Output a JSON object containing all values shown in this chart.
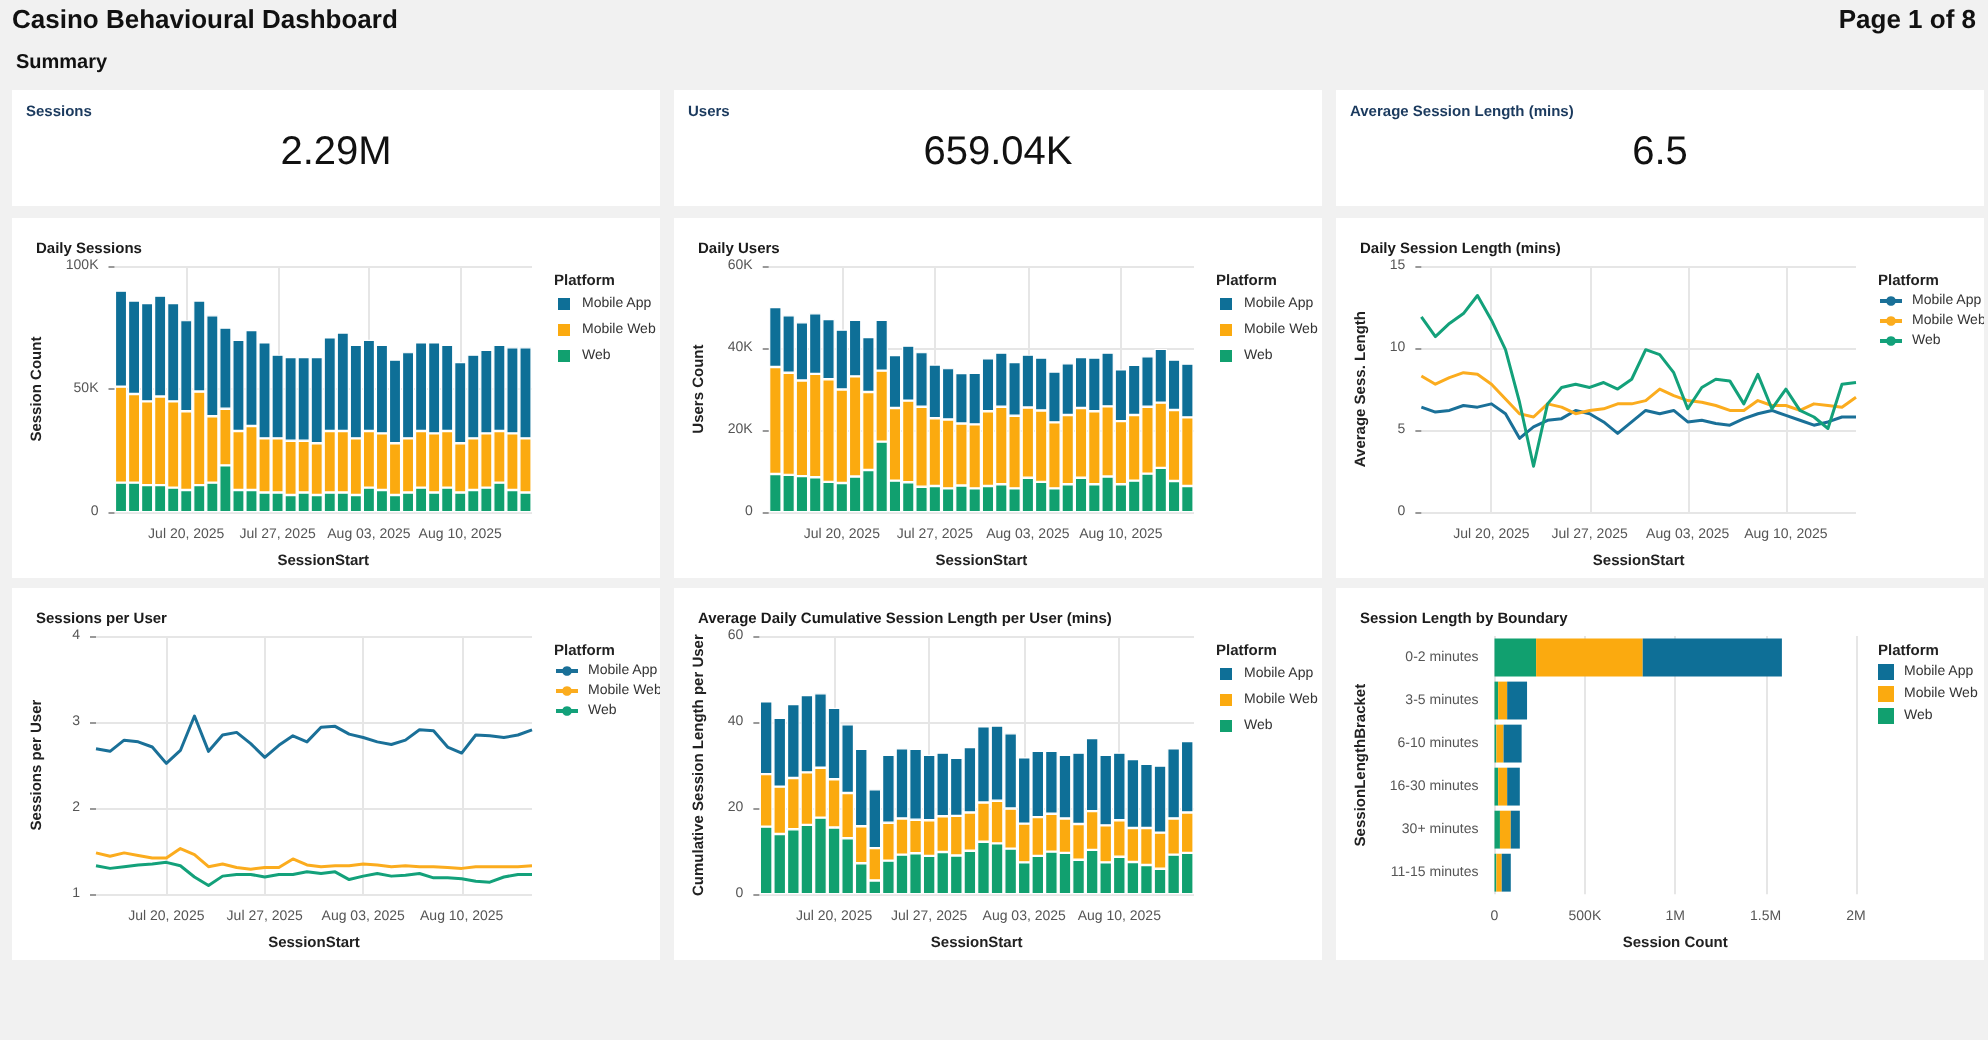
{
  "chart_data": [
    {
      "type": "other",
      "title": "Casino Behavioural Dashboard",
      "subtitle": "Summary",
      "annotations": [
        "Page 1 of 8"
      ]
    },
    {
      "type": "other",
      "title": "Sessions",
      "annotations": [
        "2.29M"
      ]
    },
    {
      "type": "other",
      "title": "Users",
      "annotations": [
        "659.04K"
      ]
    },
    {
      "type": "other",
      "title": "Average Session Length (mins)",
      "annotations": [
        "6.5"
      ]
    },
    {
      "type": "bar",
      "title": "Daily Sessions",
      "xlabel": "SessionStart",
      "ylabel": "Session Count",
      "legend_title": "Platform",
      "stacked": true,
      "grid": true,
      "legend": "right",
      "x": [
        "2025-07-15",
        "2025-07-16",
        "2025-07-17",
        "2025-07-18",
        "2025-07-19",
        "2025-07-20",
        "2025-07-21",
        "2025-07-22",
        "2025-07-23",
        "2025-07-24",
        "2025-07-25",
        "2025-07-26",
        "2025-07-27",
        "2025-07-28",
        "2025-07-29",
        "2025-07-30",
        "2025-07-31",
        "2025-08-01",
        "2025-08-02",
        "2025-08-03",
        "2025-08-04",
        "2025-08-05",
        "2025-08-06",
        "2025-08-07",
        "2025-08-08",
        "2025-08-09",
        "2025-08-10",
        "2025-08-11",
        "2025-08-12",
        "2025-08-13",
        "2025-08-14",
        "2025-08-15"
      ],
      "xlim": [
        "2025-07-14T12:00",
        "2025-08-15T12:00"
      ],
      "xticks": [
        {
          "value": "2025-07-20",
          "label": "Jul 20, 2025"
        },
        {
          "value": "2025-07-27",
          "label": "Jul 27, 2025"
        },
        {
          "value": "2025-08-03",
          "label": "Aug 03, 2025"
        },
        {
          "value": "2025-08-10",
          "label": "Aug 10, 2025"
        }
      ],
      "ylim": [
        0,
        100000
      ],
      "yticks": [
        0,
        {
          "value": 50000,
          "label": "50K"
        },
        {
          "value": 100000,
          "label": "100K"
        }
      ],
      "series": [
        {
          "name": "Web",
          "color": "#11a06f",
          "values": [
            12000,
            12000,
            11000,
            11000,
            10000,
            9000,
            11000,
            12000,
            19000,
            9000,
            9000,
            8000,
            8000,
            7000,
            8000,
            7000,
            8000,
            8000,
            7000,
            10000,
            9000,
            7000,
            8000,
            10000,
            8000,
            10000,
            8000,
            9000,
            10000,
            12000,
            9000,
            8000
          ]
        },
        {
          "name": "Mobile Web",
          "color": "#fbaa0f",
          "values": [
            39000,
            36000,
            34000,
            36000,
            35000,
            32000,
            38000,
            27000,
            23000,
            24000,
            26000,
            22000,
            22000,
            22000,
            21000,
            21000,
            25000,
            25000,
            23000,
            23000,
            23000,
            21000,
            22000,
            23000,
            24000,
            23000,
            20000,
            21000,
            22000,
            21000,
            23000,
            22000
          ]
        },
        {
          "name": "Mobile App",
          "color": "#0e6f97",
          "values": [
            39000,
            38000,
            40000,
            41000,
            40000,
            37000,
            37000,
            41000,
            33000,
            37000,
            39000,
            39000,
            34000,
            34000,
            34000,
            35000,
            38000,
            40000,
            38000,
            37000,
            36000,
            34000,
            35000,
            36000,
            37000,
            35000,
            33000,
            34000,
            34000,
            35000,
            35000,
            37000
          ]
        }
      ]
    },
    {
      "type": "bar",
      "title": "Daily Users",
      "xlabel": "SessionStart",
      "ylabel": "Users Count",
      "legend_title": "Platform",
      "stacked": true,
      "grid": true,
      "legend": "right",
      "x": [
        "2025-07-15",
        "2025-07-16",
        "2025-07-17",
        "2025-07-18",
        "2025-07-19",
        "2025-07-20",
        "2025-07-21",
        "2025-07-22",
        "2025-07-23",
        "2025-07-24",
        "2025-07-25",
        "2025-07-26",
        "2025-07-27",
        "2025-07-28",
        "2025-07-29",
        "2025-07-30",
        "2025-07-31",
        "2025-08-01",
        "2025-08-02",
        "2025-08-03",
        "2025-08-04",
        "2025-08-05",
        "2025-08-06",
        "2025-08-07",
        "2025-08-08",
        "2025-08-09",
        "2025-08-10",
        "2025-08-11",
        "2025-08-12",
        "2025-08-13",
        "2025-08-14",
        "2025-08-15"
      ],
      "xlim": [
        "2025-07-14T12:00",
        "2025-08-15T12:00"
      ],
      "xticks": [
        {
          "value": "2025-07-20",
          "label": "Jul 20, 2025"
        },
        {
          "value": "2025-07-27",
          "label": "Jul 27, 2025"
        },
        {
          "value": "2025-08-03",
          "label": "Aug 03, 2025"
        },
        {
          "value": "2025-08-10",
          "label": "Aug 10, 2025"
        }
      ],
      "ylim": [
        0,
        60000
      ],
      "yticks": [
        0,
        {
          "value": 20000,
          "label": "20K"
        },
        {
          "value": 40000,
          "label": "40K"
        },
        {
          "value": 60000,
          "label": "60K"
        }
      ],
      "series": [
        {
          "name": "Web",
          "color": "#11a06f",
          "values": [
            9300,
            9100,
            8800,
            8500,
            7400,
            7100,
            8700,
            10300,
            17200,
            7700,
            7300,
            6200,
            6400,
            5800,
            6500,
            5800,
            6400,
            6800,
            5800,
            8400,
            7400,
            5800,
            6800,
            8400,
            6800,
            8700,
            6800,
            7700,
            9400,
            10800,
            7600,
            6400
          ]
        },
        {
          "name": "Mobile Web",
          "color": "#fbaa0f",
          "values": [
            26100,
            24900,
            23300,
            25200,
            25000,
            22800,
            24400,
            19000,
            17300,
            17700,
            19900,
            19500,
            16500,
            16800,
            15100,
            15600,
            18200,
            18900,
            17700,
            17100,
            17400,
            16100,
            16900,
            17000,
            17800,
            17100,
            15400,
            16000,
            16300,
            15900,
            17300,
            16700
          ]
        },
        {
          "name": "Mobile App",
          "color": "#0e6f97",
          "values": [
            14600,
            14000,
            14200,
            14800,
            14700,
            14600,
            13800,
            13400,
            12400,
            12900,
            13400,
            13300,
            13100,
            12500,
            12300,
            12600,
            12900,
            13200,
            13100,
            12900,
            12900,
            12400,
            12600,
            12400,
            13100,
            13100,
            12600,
            12200,
            12300,
            13100,
            12300,
            13100
          ]
        }
      ]
    },
    {
      "type": "line",
      "title": "Daily Session Length (mins)",
      "xlabel": "SessionStart",
      "ylabel": "Average Sess. Length",
      "legend_title": "Platform",
      "grid": true,
      "legend": "right",
      "marker": "none",
      "x": [
        "2025-07-15",
        "2025-07-16",
        "2025-07-17",
        "2025-07-18",
        "2025-07-19",
        "2025-07-20",
        "2025-07-21",
        "2025-07-22",
        "2025-07-23",
        "2025-07-24",
        "2025-07-25",
        "2025-07-26",
        "2025-07-27",
        "2025-07-28",
        "2025-07-29",
        "2025-07-30",
        "2025-07-31",
        "2025-08-01",
        "2025-08-02",
        "2025-08-03",
        "2025-08-04",
        "2025-08-05",
        "2025-08-06",
        "2025-08-07",
        "2025-08-08",
        "2025-08-09",
        "2025-08-10",
        "2025-08-11",
        "2025-08-12",
        "2025-08-13",
        "2025-08-14",
        "2025-08-15"
      ],
      "xlim": [
        "2025-07-15",
        "2025-08-15"
      ],
      "xticks": [
        {
          "value": "2025-07-20",
          "label": "Jul 20, 2025"
        },
        {
          "value": "2025-07-27",
          "label": "Jul 27, 2025"
        },
        {
          "value": "2025-08-03",
          "label": "Aug 03, 2025"
        },
        {
          "value": "2025-08-10",
          "label": "Aug 10, 2025"
        }
      ],
      "ylim": [
        0,
        15
      ],
      "yticks": [
        0,
        5,
        10,
        15
      ],
      "series": [
        {
          "name": "Mobile App",
          "color": "#1a7098",
          "values": [
            6.4,
            6.1,
            6.2,
            6.5,
            6.4,
            6.6,
            6.0,
            4.5,
            5.2,
            5.6,
            5.7,
            6.2,
            6.0,
            5.5,
            4.8,
            5.5,
            6.2,
            6.0,
            6.2,
            5.5,
            5.6,
            5.4,
            5.3,
            5.7,
            6.0,
            6.2,
            5.9,
            5.6,
            5.3,
            5.5,
            5.8,
            5.8
          ]
        },
        {
          "name": "Mobile Web",
          "color": "#fbac1e",
          "values": [
            8.3,
            7.8,
            8.2,
            8.5,
            8.4,
            7.8,
            6.9,
            6.0,
            5.8,
            6.6,
            6.4,
            6.0,
            6.2,
            6.3,
            6.6,
            6.6,
            6.8,
            7.5,
            7.1,
            6.8,
            6.7,
            6.5,
            6.2,
            6.2,
            6.8,
            6.5,
            6.5,
            6.2,
            6.6,
            6.5,
            6.4,
            7.0
          ]
        },
        {
          "name": "Web",
          "color": "#13a17a",
          "values": [
            11.9,
            10.7,
            11.5,
            12.1,
            13.2,
            11.7,
            9.9,
            6.7,
            2.8,
            6.6,
            7.6,
            7.8,
            7.6,
            7.9,
            7.5,
            8.1,
            9.9,
            9.6,
            8.5,
            6.3,
            7.6,
            8.1,
            8.0,
            6.6,
            8.4,
            6.3,
            7.5,
            6.2,
            5.8,
            5.1,
            7.8,
            7.9
          ]
        }
      ]
    },
    {
      "type": "line",
      "title": "Sessions per User",
      "xlabel": "SessionStart",
      "ylabel": "Sessions per User",
      "legend_title": "Platform",
      "grid": true,
      "legend": "right",
      "marker": "none",
      "x": [
        "2025-07-15",
        "2025-07-16",
        "2025-07-17",
        "2025-07-18",
        "2025-07-19",
        "2025-07-20",
        "2025-07-21",
        "2025-07-22",
        "2025-07-23",
        "2025-07-24",
        "2025-07-25",
        "2025-07-26",
        "2025-07-27",
        "2025-07-28",
        "2025-07-29",
        "2025-07-30",
        "2025-07-31",
        "2025-08-01",
        "2025-08-02",
        "2025-08-03",
        "2025-08-04",
        "2025-08-05",
        "2025-08-06",
        "2025-08-07",
        "2025-08-08",
        "2025-08-09",
        "2025-08-10",
        "2025-08-11",
        "2025-08-12",
        "2025-08-13",
        "2025-08-14",
        "2025-08-15"
      ],
      "xlim": [
        "2025-07-15",
        "2025-08-15"
      ],
      "xticks": [
        {
          "value": "2025-07-20",
          "label": "Jul 20, 2025"
        },
        {
          "value": "2025-07-27",
          "label": "Jul 27, 2025"
        },
        {
          "value": "2025-08-03",
          "label": "Aug 03, 2025"
        },
        {
          "value": "2025-08-10",
          "label": "Aug 10, 2025"
        }
      ],
      "ylim": [
        1,
        4
      ],
      "yticks": [
        1,
        2,
        3,
        4
      ],
      "series": [
        {
          "name": "Mobile App",
          "color": "#1a7098",
          "values": [
            2.69,
            2.66,
            2.79,
            2.77,
            2.71,
            2.52,
            2.67,
            3.07,
            2.66,
            2.85,
            2.88,
            2.75,
            2.59,
            2.73,
            2.84,
            2.77,
            2.94,
            2.95,
            2.86,
            2.82,
            2.77,
            2.74,
            2.79,
            2.91,
            2.9,
            2.71,
            2.64,
            2.85,
            2.84,
            2.82,
            2.85,
            2.91
          ]
        },
        {
          "name": "Mobile Web",
          "color": "#fbac1e",
          "values": [
            1.48,
            1.44,
            1.48,
            1.45,
            1.42,
            1.42,
            1.53,
            1.46,
            1.32,
            1.35,
            1.31,
            1.29,
            1.31,
            1.31,
            1.41,
            1.34,
            1.32,
            1.33,
            1.33,
            1.35,
            1.34,
            1.32,
            1.33,
            1.32,
            1.32,
            1.31,
            1.3,
            1.32,
            1.32,
            1.32,
            1.32,
            1.33
          ]
        },
        {
          "name": "Web",
          "color": "#13a17a",
          "values": [
            1.33,
            1.3,
            1.32,
            1.34,
            1.35,
            1.37,
            1.33,
            1.2,
            1.1,
            1.21,
            1.23,
            1.23,
            1.2,
            1.23,
            1.23,
            1.26,
            1.24,
            1.26,
            1.17,
            1.21,
            1.24,
            1.21,
            1.22,
            1.24,
            1.19,
            1.19,
            1.18,
            1.15,
            1.14,
            1.2,
            1.23,
            1.23
          ]
        }
      ]
    },
    {
      "type": "bar",
      "title": "Average Daily Cumulative Session Length per User (mins)",
      "xlabel": "SessionStart",
      "ylabel": "Cumulative Session Length per User",
      "legend_title": "Platform",
      "stacked": true,
      "grid": true,
      "legend": "right",
      "x": [
        "2025-07-15",
        "2025-07-16",
        "2025-07-17",
        "2025-07-18",
        "2025-07-19",
        "2025-07-20",
        "2025-07-21",
        "2025-07-22",
        "2025-07-23",
        "2025-07-24",
        "2025-07-25",
        "2025-07-26",
        "2025-07-27",
        "2025-07-28",
        "2025-07-29",
        "2025-07-30",
        "2025-07-31",
        "2025-08-01",
        "2025-08-02",
        "2025-08-03",
        "2025-08-04",
        "2025-08-05",
        "2025-08-06",
        "2025-08-07",
        "2025-08-08",
        "2025-08-09",
        "2025-08-10",
        "2025-08-11",
        "2025-08-12",
        "2025-08-13",
        "2025-08-14",
        "2025-08-15"
      ],
      "xlim": [
        "2025-07-14T12:00",
        "2025-08-15T12:00"
      ],
      "xticks": [
        {
          "value": "2025-07-20",
          "label": "Jul 20, 2025"
        },
        {
          "value": "2025-07-27",
          "label": "Jul 27, 2025"
        },
        {
          "value": "2025-08-03",
          "label": "Aug 03, 2025"
        },
        {
          "value": "2025-08-10",
          "label": "Aug 10, 2025"
        }
      ],
      "ylim": [
        0,
        60
      ],
      "yticks": [
        0,
        20,
        40,
        60
      ],
      "series": [
        {
          "name": "Web",
          "color": "#11a06f",
          "values": [
            15.7,
            14.0,
            15.1,
            16.1,
            17.8,
            15.5,
            13.0,
            7.2,
            3.2,
            7.8,
            9.2,
            9.5,
            8.9,
            9.8,
            9.0,
            10.1,
            12.2,
            11.8,
            10.6,
            7.4,
            8.9,
            9.9,
            9.6,
            8.0,
            10.3,
            7.4,
            8.7,
            7.5,
            6.8,
            5.9,
            9.2,
            9.6
          ]
        },
        {
          "name": "Mobile Web",
          "color": "#fbaa0f",
          "values": [
            12.2,
            11.0,
            11.9,
            12.2,
            11.6,
            11.2,
            10.5,
            8.6,
            7.5,
            8.8,
            8.4,
            7.8,
            8.3,
            8.3,
            9.2,
            8.9,
            9.1,
            9.9,
            9.3,
            9.0,
            9.0,
            8.8,
            8.0,
            8.3,
            9.0,
            8.6,
            8.5,
            7.9,
            8.6,
            8.4,
            8.4,
            9.4
          ]
        },
        {
          "name": "Mobile App",
          "color": "#0e6f97",
          "values": [
            16.9,
            16.0,
            17.2,
            18.0,
            17.3,
            16.6,
            16.0,
            18.0,
            13.7,
            15.8,
            16.3,
            16.5,
            15.2,
            14.8,
            13.5,
            15.2,
            17.7,
            17.5,
            17.5,
            15.4,
            15.4,
            14.6,
            14.8,
            16.6,
            17.0,
            16.4,
            15.7,
            16.0,
            14.9,
            15.6,
            16.3,
            16.6
          ]
        }
      ]
    },
    {
      "type": "bar",
      "title": "Session Length by Boundary",
      "xlabel": "Session Count",
      "ylabel": "SessionLengthBracket",
      "legend_title": "Platform",
      "stacked": true,
      "orientation": "horizontal",
      "grid": "x",
      "legend": "right",
      "categories": [
        "0-2 minutes",
        "3-5 minutes",
        "6-10 minutes",
        "16-30 minutes",
        "30+ minutes",
        "11-15 minutes"
      ],
      "xlim": [
        0,
        2000000
      ],
      "xticks": [
        0,
        {
          "value": 500000,
          "label": "500K"
        },
        {
          "value": 1000000,
          "label": "1M"
        },
        {
          "value": 1500000,
          "label": "1.5M"
        },
        {
          "value": 2000000,
          "label": "2M"
        }
      ],
      "series": [
        {
          "name": "Web",
          "color": "#11a06f",
          "values": [
            230000,
            20000,
            10000,
            20000,
            30000,
            10000
          ]
        },
        {
          "name": "Mobile Web",
          "color": "#fbaa0f",
          "values": [
            590000,
            50000,
            40000,
            50000,
            60000,
            30000
          ]
        },
        {
          "name": "Mobile App",
          "color": "#0e6f97",
          "values": [
            770000,
            110000,
            100000,
            70000,
            50000,
            50000
          ]
        }
      ]
    }
  ]
}
